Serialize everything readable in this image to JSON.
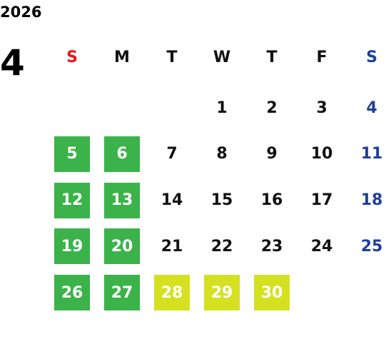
{
  "year": "2026",
  "month": "4",
  "weekdays": [
    {
      "label": "S",
      "color": "#e8141b"
    },
    {
      "label": "M",
      "color": "#111111"
    },
    {
      "label": "T",
      "color": "#111111"
    },
    {
      "label": "W",
      "color": "#111111"
    },
    {
      "label": "T",
      "color": "#111111"
    },
    {
      "label": "F",
      "color": "#111111"
    },
    {
      "label": "S",
      "color": "#1f3f99"
    }
  ],
  "weeks": [
    [
      null,
      null,
      null,
      {
        "day": "1"
      },
      {
        "day": "2"
      },
      {
        "day": "3"
      },
      {
        "day": "4"
      }
    ],
    [
      {
        "day": "5",
        "bg": "#3bb34a"
      },
      {
        "day": "6",
        "bg": "#3bb34a"
      },
      {
        "day": "7"
      },
      {
        "day": "8"
      },
      {
        "day": "9"
      },
      {
        "day": "10"
      },
      {
        "day": "11"
      }
    ],
    [
      {
        "day": "12",
        "bg": "#3bb34a"
      },
      {
        "day": "13",
        "bg": "#3bb34a"
      },
      {
        "day": "14"
      },
      {
        "day": "15"
      },
      {
        "day": "16"
      },
      {
        "day": "17"
      },
      {
        "day": "18"
      }
    ],
    [
      {
        "day": "19",
        "bg": "#3bb34a"
      },
      {
        "day": "20",
        "bg": "#3bb34a"
      },
      {
        "day": "21"
      },
      {
        "day": "22"
      },
      {
        "day": "23"
      },
      {
        "day": "24"
      },
      {
        "day": "25"
      }
    ],
    [
      {
        "day": "26",
        "bg": "#3bb34a"
      },
      {
        "day": "27",
        "bg": "#3bb34a"
      },
      {
        "day": "28",
        "bg": "#d5e021"
      },
      {
        "day": "29",
        "bg": "#d5e021"
      },
      {
        "day": "30",
        "bg": "#d5e021"
      },
      null,
      null
    ]
  ]
}
